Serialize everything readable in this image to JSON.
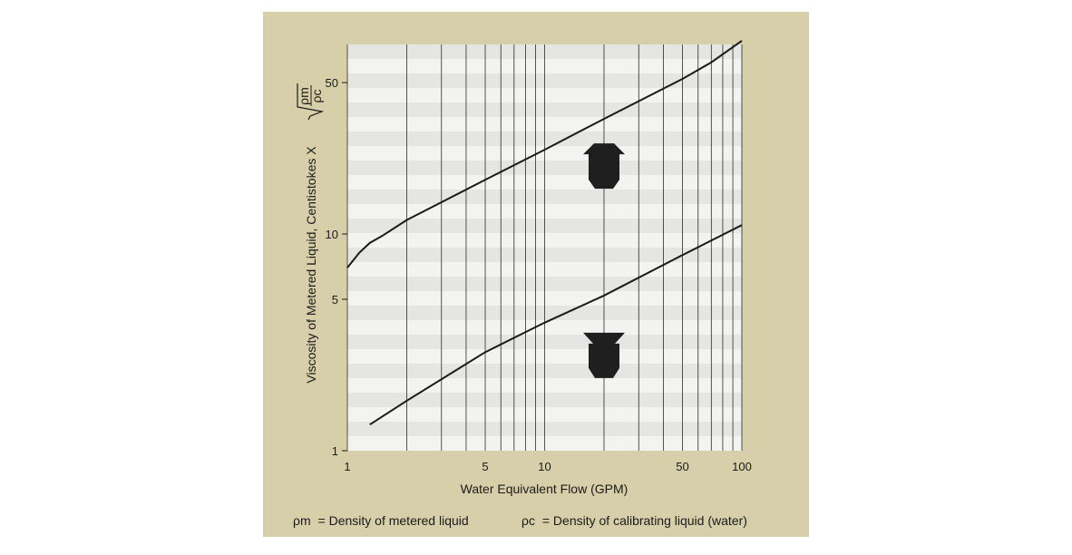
{
  "chart_data": {
    "type": "line",
    "x_scale": "log",
    "y_scale": "log",
    "xlim": [
      1,
      100
    ],
    "ylim": [
      1,
      75
    ],
    "grid": "vertical log gridlines with alternating light horizontal bands",
    "xlabel": "Water Equivalent Flow (GPM)",
    "ylabel_prefix": "Viscosity of Metered Liquid, Centistokes X ",
    "ylabel_fraction_num": "ρm",
    "ylabel_fraction_den": "ρc",
    "x_ticks": [
      {
        "value": 1,
        "label": "1"
      },
      {
        "value": 5,
        "label": "5"
      },
      {
        "value": 10,
        "label": "10"
      },
      {
        "value": 50,
        "label": "50"
      },
      {
        "value": 100,
        "label": "100"
      }
    ],
    "y_ticks": [
      {
        "value": 1,
        "label": "1"
      },
      {
        "value": 5,
        "label": "5"
      },
      {
        "value": 10,
        "label": "10"
      },
      {
        "value": 50,
        "label": "50"
      }
    ],
    "x_gridlines": [
      1,
      2,
      3,
      4,
      5,
      6,
      7,
      8,
      9,
      10,
      20,
      30,
      40,
      50,
      60,
      70,
      80,
      90,
      100
    ],
    "series": [
      {
        "points": [
          [
            1.0,
            7.0
          ],
          [
            1.15,
            8.2
          ],
          [
            1.3,
            9.1
          ],
          [
            1.5,
            9.8
          ],
          [
            2,
            11.6
          ],
          [
            5,
            17.8
          ],
          [
            10,
            24.5
          ],
          [
            20,
            34
          ],
          [
            50,
            52
          ],
          [
            70,
            62
          ],
          [
            100,
            78
          ]
        ]
      },
      {
        "points": [
          [
            1.3,
            1.32
          ],
          [
            2,
            1.7
          ],
          [
            5,
            2.85
          ],
          [
            10,
            3.9
          ],
          [
            20,
            5.2
          ],
          [
            50,
            8.0
          ],
          [
            100,
            11.0
          ]
        ]
      }
    ],
    "markers": [
      {
        "icon": "up-arrow-icon",
        "x": 20,
        "y": 21
      },
      {
        "icon": "down-arrow-icon",
        "x": 20,
        "y": 2.7
      }
    ],
    "legend": [
      {
        "symbol": "ρm",
        "text": "= Density of metered liquid"
      },
      {
        "symbol": "ρc",
        "text": "= Density of calibrating liquid (water)"
      }
    ],
    "colors": {
      "panel_background": "#d6cfa9",
      "plot_background": "#f3f3f1",
      "band": "#e5e5e3",
      "line": "#1a1a1a",
      "marker": "#1f1f1f"
    }
  }
}
